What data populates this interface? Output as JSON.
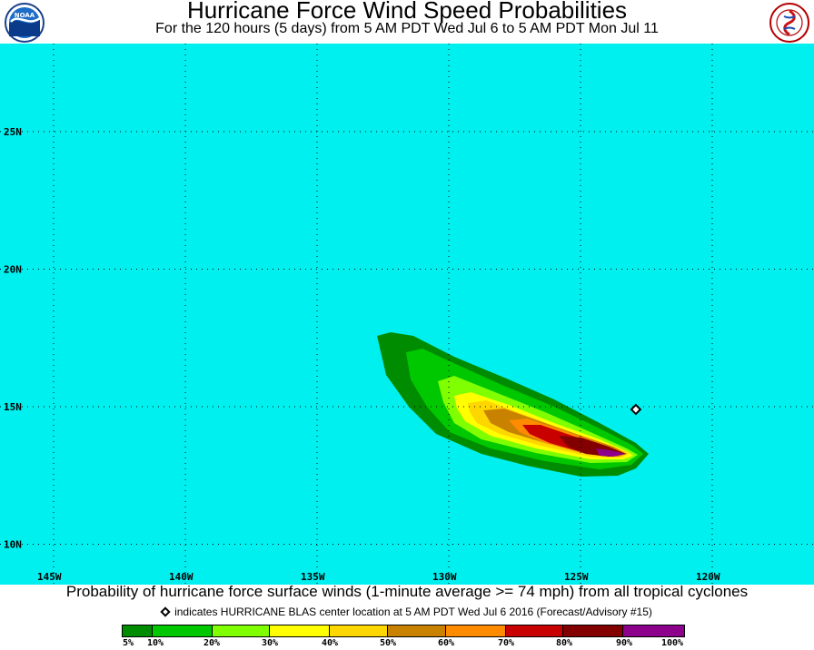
{
  "header": {
    "title": "Hurricane Force Wind Speed Probabilities",
    "subtitle": "For the 120 hours (5 days) from 5 AM PDT Wed Jul 6 to 5 AM PDT Mon Jul 11",
    "logo_left_icon": "noaa-logo-icon",
    "logo_right_icon": "national-weather-service-logo-icon"
  },
  "map": {
    "background_color": "#00f0f0",
    "lat_labels": [
      "25N",
      "20N",
      "15N",
      "10N"
    ],
    "lon_labels": [
      "145W",
      "140W",
      "135W",
      "130W",
      "125W",
      "120W"
    ],
    "grid_lats": [
      25,
      20,
      15,
      10
    ],
    "grid_lons": [
      145,
      140,
      135,
      130,
      125,
      120
    ],
    "storm_center": {
      "lat": 14.9,
      "lon": 122.9
    }
  },
  "footer": {
    "caption": "Probability of hurricane force surface winds (1-minute average >= 74 mph) from all tropical cyclones",
    "note": "indicates HURRICANE BLAS center location at 5 AM PDT Wed Jul 6 2016 (Forecast/Advisory #15)",
    "legend": [
      {
        "label": "5%",
        "color": "#008c00"
      },
      {
        "label": "10%",
        "color": "#00c800"
      },
      {
        "label": "20%",
        "color": "#80ff00"
      },
      {
        "label": "30%",
        "color": "#ffff00"
      },
      {
        "label": "40%",
        "color": "#ffd700"
      },
      {
        "label": "50%",
        "color": "#c88200"
      },
      {
        "label": "60%",
        "color": "#ff8c00"
      },
      {
        "label": "70%",
        "color": "#c80000"
      },
      {
        "label": "80%",
        "color": "#820000"
      },
      {
        "label": "90%",
        "color": "#8c008c"
      },
      {
        "label": "100%",
        "color": ""
      }
    ]
  }
}
